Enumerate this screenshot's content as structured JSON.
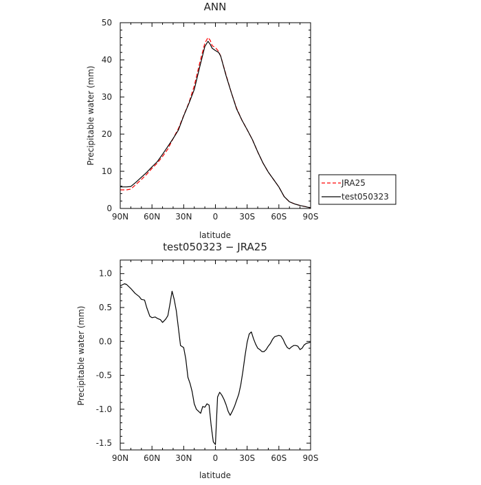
{
  "chart_data": [
    {
      "type": "line",
      "title": "ANN",
      "xlabel": "latitude",
      "ylabel": "Precipitable water (mm)",
      "xlim": [
        90,
        -90
      ],
      "ylim": [
        0,
        50
      ],
      "xticks": [
        90,
        60,
        30,
        0,
        -30,
        -60,
        -90
      ],
      "xticklabels": [
        "90N",
        "60N",
        "30N",
        "0",
        "30S",
        "60S",
        "90S"
      ],
      "yticks": [
        0,
        10,
        20,
        30,
        40,
        50
      ],
      "yticklabels": [
        "0",
        "10",
        "20",
        "30",
        "40",
        "50"
      ],
      "grid": false,
      "legend": "right",
      "series": [
        {
          "name": "JRA25",
          "color": "#ff0000",
          "dash": "dashed",
          "x": [
            90,
            84,
            80,
            75,
            70,
            65,
            60,
            55,
            50,
            45,
            40,
            35,
            30,
            25,
            20,
            15,
            10,
            7,
            5,
            3,
            0,
            -3,
            -5,
            -10,
            -15,
            -20,
            -25,
            -30,
            -35,
            -40,
            -45,
            -50,
            -55,
            -60,
            -65,
            -70,
            -75,
            -80,
            -85,
            -88,
            -90
          ],
          "y": [
            5.0,
            5.0,
            5.2,
            6.5,
            7.8,
            9.2,
            10.8,
            12.2,
            14.0,
            16.0,
            18.8,
            21.5,
            25.0,
            28.5,
            33.0,
            39.0,
            44.5,
            46.0,
            45.3,
            43.8,
            43.3,
            42.3,
            41.0,
            36.0,
            31.2,
            27.0,
            23.8,
            21.2,
            18.5,
            15.2,
            12.2,
            9.8,
            7.8,
            5.8,
            3.2,
            1.8,
            1.2,
            0.8,
            0.5,
            0.3,
            0.2
          ]
        },
        {
          "name": "test050323",
          "color": "#000000",
          "dash": "solid",
          "x": [
            90,
            84,
            80,
            75,
            70,
            65,
            60,
            55,
            50,
            45,
            40,
            35,
            30,
            25,
            20,
            15,
            10,
            7,
            5,
            3,
            0,
            -3,
            -5,
            -10,
            -15,
            -20,
            -25,
            -30,
            -35,
            -40,
            -45,
            -50,
            -55,
            -60,
            -65,
            -70,
            -75,
            -80,
            -85,
            -88,
            -90
          ],
          "y": [
            5.8,
            5.8,
            5.9,
            7.1,
            8.4,
            9.7,
            11.2,
            12.6,
            14.6,
            16.7,
            18.8,
            21.1,
            24.9,
            28.3,
            32.0,
            37.9,
            43.6,
            45.0,
            44.2,
            43.1,
            42.5,
            42.0,
            41.0,
            35.8,
            31.2,
            26.8,
            23.8,
            21.2,
            18.5,
            15.2,
            12.2,
            9.8,
            7.8,
            5.8,
            3.2,
            1.8,
            1.2,
            0.8,
            0.5,
            0.3,
            0.2
          ]
        }
      ]
    },
    {
      "type": "line",
      "title": "test050323 − JRA25",
      "xlabel": "latitude",
      "ylabel": "Precipitable water (mm)",
      "xlim": [
        90,
        -90
      ],
      "ylim": [
        -1.6,
        1.2
      ],
      "xticks": [
        90,
        60,
        30,
        0,
        -30,
        -60,
        -90
      ],
      "xticklabels": [
        "90N",
        "60N",
        "30N",
        "0",
        "30S",
        "60S",
        "90S"
      ],
      "yticks": [
        1.0,
        0.5,
        0.0,
        -0.5,
        -1.0,
        -1.5
      ],
      "yticklabels": [
        "1.0",
        "0.5",
        "0.0",
        "-0.5",
        "-1.0",
        "-1.5"
      ],
      "grid": false,
      "series": [
        {
          "color": "#000000",
          "dash": "solid",
          "x": [
            90,
            86,
            84,
            80,
            76,
            72,
            70,
            67,
            65,
            62,
            60,
            57,
            55,
            52,
            50,
            47,
            45,
            43,
            41,
            39,
            37,
            35,
            33,
            30,
            28,
            26,
            24,
            22,
            20,
            18,
            16,
            14,
            12,
            10,
            8,
            6,
            4,
            2,
            0,
            -2,
            -4,
            -6,
            -8,
            -10,
            -12,
            -14,
            -16,
            -18,
            -20,
            -22,
            -24,
            -26,
            -28,
            -30,
            -32,
            -34,
            -36,
            -38,
            -40,
            -42,
            -44,
            -46,
            -48,
            -50,
            -52,
            -54,
            -56,
            -58,
            -60,
            -62,
            -64,
            -66,
            -68,
            -70,
            -72,
            -74,
            -76,
            -78,
            -80,
            -82,
            -84,
            -86,
            -88,
            -90
          ],
          "y": [
            0.82,
            0.85,
            0.84,
            0.78,
            0.71,
            0.66,
            0.62,
            0.61,
            0.5,
            0.37,
            0.35,
            0.36,
            0.34,
            0.32,
            0.28,
            0.33,
            0.38,
            0.55,
            0.74,
            0.62,
            0.45,
            0.2,
            -0.06,
            -0.09,
            -0.26,
            -0.53,
            -0.62,
            -0.74,
            -0.92,
            -1.0,
            -1.03,
            -1.06,
            -0.96,
            -0.97,
            -0.92,
            -0.94,
            -1.24,
            -1.48,
            -1.52,
            -0.82,
            -0.75,
            -0.79,
            -0.85,
            -0.93,
            -1.03,
            -1.09,
            -1.03,
            -0.96,
            -0.87,
            -0.78,
            -0.64,
            -0.44,
            -0.21,
            -0.01,
            0.11,
            0.14,
            0.04,
            -0.04,
            -0.1,
            -0.12,
            -0.15,
            -0.15,
            -0.12,
            -0.07,
            -0.03,
            0.03,
            0.07,
            0.08,
            0.09,
            0.08,
            0.03,
            -0.04,
            -0.09,
            -0.11,
            -0.08,
            -0.06,
            -0.06,
            -0.07,
            -0.12,
            -0.1,
            -0.05,
            -0.03,
            -0.02,
            -0.01
          ]
        }
      ]
    }
  ]
}
